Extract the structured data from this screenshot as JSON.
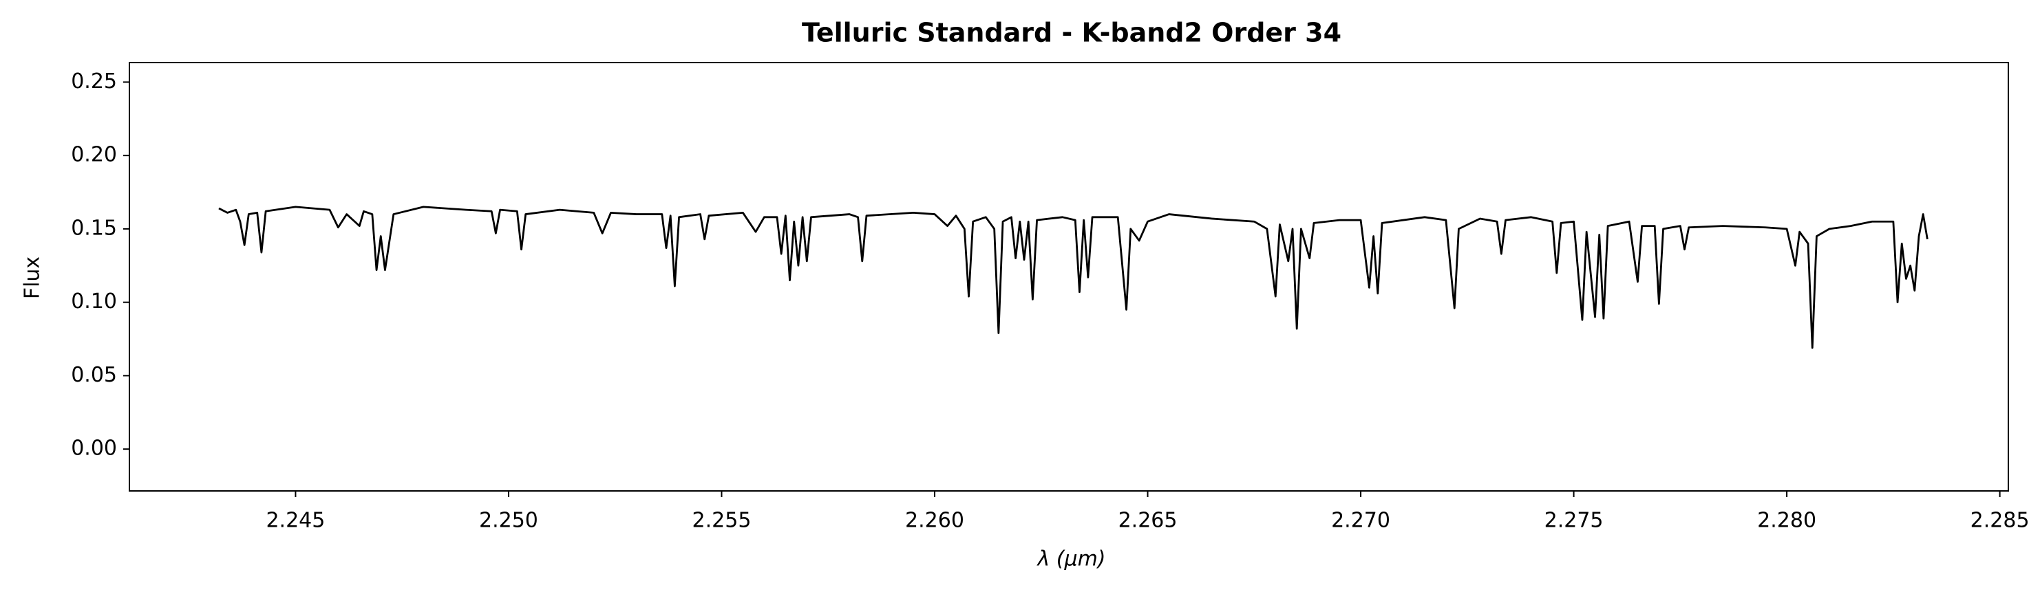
{
  "chart_data": {
    "type": "line",
    "title": "Telluric Standard - K-band2 Order 34",
    "xlabel": "λ (μm)",
    "ylabel": "Flux",
    "color": "#000000",
    "xlim": [
      2.2411,
      2.2852
    ],
    "ylim": [
      -0.0285,
      0.2633
    ],
    "xticks": [
      2.245,
      {
        "value": 2.25,
        "label": "2.250"
      },
      2.255,
      {
        "value": 2.26,
        "label": "2.260"
      },
      2.265,
      {
        "value": 2.27,
        "label": "2.270"
      },
      2.275,
      {
        "value": 2.28,
        "label": "2.280"
      },
      2.285
    ],
    "yticks": [
      {
        "value": 0,
        "label": "0.00"
      },
      0.05,
      {
        "value": 0.1,
        "label": "0.10"
      },
      0.15,
      {
        "value": 0.2,
        "label": "0.20"
      },
      0.25
    ],
    "x": [
      2.2432,
      2.2434,
      2.2436,
      2.2437,
      2.2438,
      2.2439,
      2.2441,
      2.2442,
      2.2443,
      2.245,
      2.2458,
      2.246,
      2.2462,
      2.2465,
      2.2466,
      2.2468,
      2.2469,
      2.247,
      2.2471,
      2.2473,
      2.248,
      2.249,
      2.2496,
      2.2497,
      2.2498,
      2.2502,
      2.2503,
      2.2504,
      2.2512,
      2.252,
      2.2522,
      2.2524,
      2.253,
      2.2536,
      2.2537,
      2.2538,
      2.2539,
      2.254,
      2.2545,
      2.2546,
      2.2547,
      2.2555,
      2.2558,
      2.256,
      2.2563,
      2.2564,
      2.2565,
      2.2566,
      2.2567,
      2.2568,
      2.2569,
      2.257,
      2.2571,
      2.258,
      2.2582,
      2.2583,
      2.2584,
      2.2595,
      2.26,
      2.2603,
      2.2605,
      2.2607,
      2.2608,
      2.2609,
      2.2612,
      2.2614,
      2.2615,
      2.2616,
      2.2618,
      2.2619,
      2.262,
      2.2621,
      2.2622,
      2.2623,
      2.2624,
      2.263,
      2.2633,
      2.2634,
      2.2635,
      2.2636,
      2.2637,
      2.2643,
      2.2645,
      2.2646,
      2.2648,
      2.265,
      2.2655,
      2.2665,
      2.2675,
      2.2678,
      2.268,
      2.2681,
      2.2683,
      2.2684,
      2.2685,
      2.2686,
      2.2688,
      2.2689,
      2.2695,
      2.27,
      2.2702,
      2.2703,
      2.2704,
      2.2705,
      2.2715,
      2.272,
      2.2722,
      2.2723,
      2.2728,
      2.2732,
      2.2733,
      2.2734,
      2.274,
      2.2745,
      2.2746,
      2.2747,
      2.275,
      2.2752,
      2.2753,
      2.2755,
      2.2756,
      2.2757,
      2.2758,
      2.2763,
      2.2765,
      2.2766,
      2.2769,
      2.277,
      2.2771,
      2.2775,
      2.2776,
      2.2777,
      2.2785,
      2.2795,
      2.28,
      2.2802,
      2.2803,
      2.2805,
      2.2806,
      2.2807,
      2.281,
      2.2815,
      2.282,
      2.2825,
      2.2826,
      2.2827,
      2.2828,
      2.2829,
      2.283,
      2.2831,
      2.2832,
      2.2833
    ],
    "values": [
      0.164,
      0.161,
      0.163,
      0.155,
      0.139,
      0.16,
      0.161,
      0.134,
      0.162,
      0.165,
      0.163,
      0.151,
      0.16,
      0.152,
      0.162,
      0.16,
      0.122,
      0.145,
      0.122,
      0.16,
      0.165,
      0.163,
      0.162,
      0.147,
      0.163,
      0.162,
      0.136,
      0.16,
      0.163,
      0.161,
      0.147,
      0.161,
      0.16,
      0.16,
      0.137,
      0.159,
      0.111,
      0.158,
      0.16,
      0.143,
      0.159,
      0.161,
      0.148,
      0.158,
      0.158,
      0.133,
      0.159,
      0.115,
      0.155,
      0.125,
      0.158,
      0.128,
      0.158,
      0.16,
      0.158,
      0.128,
      0.159,
      0.161,
      0.16,
      0.152,
      0.159,
      0.15,
      0.104,
      0.155,
      0.158,
      0.15,
      0.079,
      0.155,
      0.158,
      0.13,
      0.155,
      0.129,
      0.155,
      0.102,
      0.156,
      0.158,
      0.156,
      0.107,
      0.156,
      0.117,
      0.158,
      0.158,
      0.095,
      0.15,
      0.142,
      0.155,
      0.16,
      0.157,
      0.155,
      0.15,
      0.104,
      0.153,
      0.128,
      0.15,
      0.082,
      0.15,
      0.13,
      0.154,
      0.156,
      0.156,
      0.11,
      0.145,
      0.106,
      0.154,
      0.158,
      0.156,
      0.096,
      0.15,
      0.157,
      0.155,
      0.133,
      0.156,
      0.158,
      0.155,
      0.12,
      0.154,
      0.155,
      0.088,
      0.148,
      0.09,
      0.146,
      0.089,
      0.152,
      0.155,
      0.114,
      0.152,
      0.152,
      0.099,
      0.15,
      0.152,
      0.136,
      0.151,
      0.152,
      0.151,
      0.15,
      0.125,
      0.148,
      0.14,
      0.069,
      0.145,
      0.15,
      0.152,
      0.155,
      0.155,
      0.1,
      0.14,
      0.116,
      0.125,
      0.108,
      0.145,
      0.16,
      0.143
    ]
  }
}
